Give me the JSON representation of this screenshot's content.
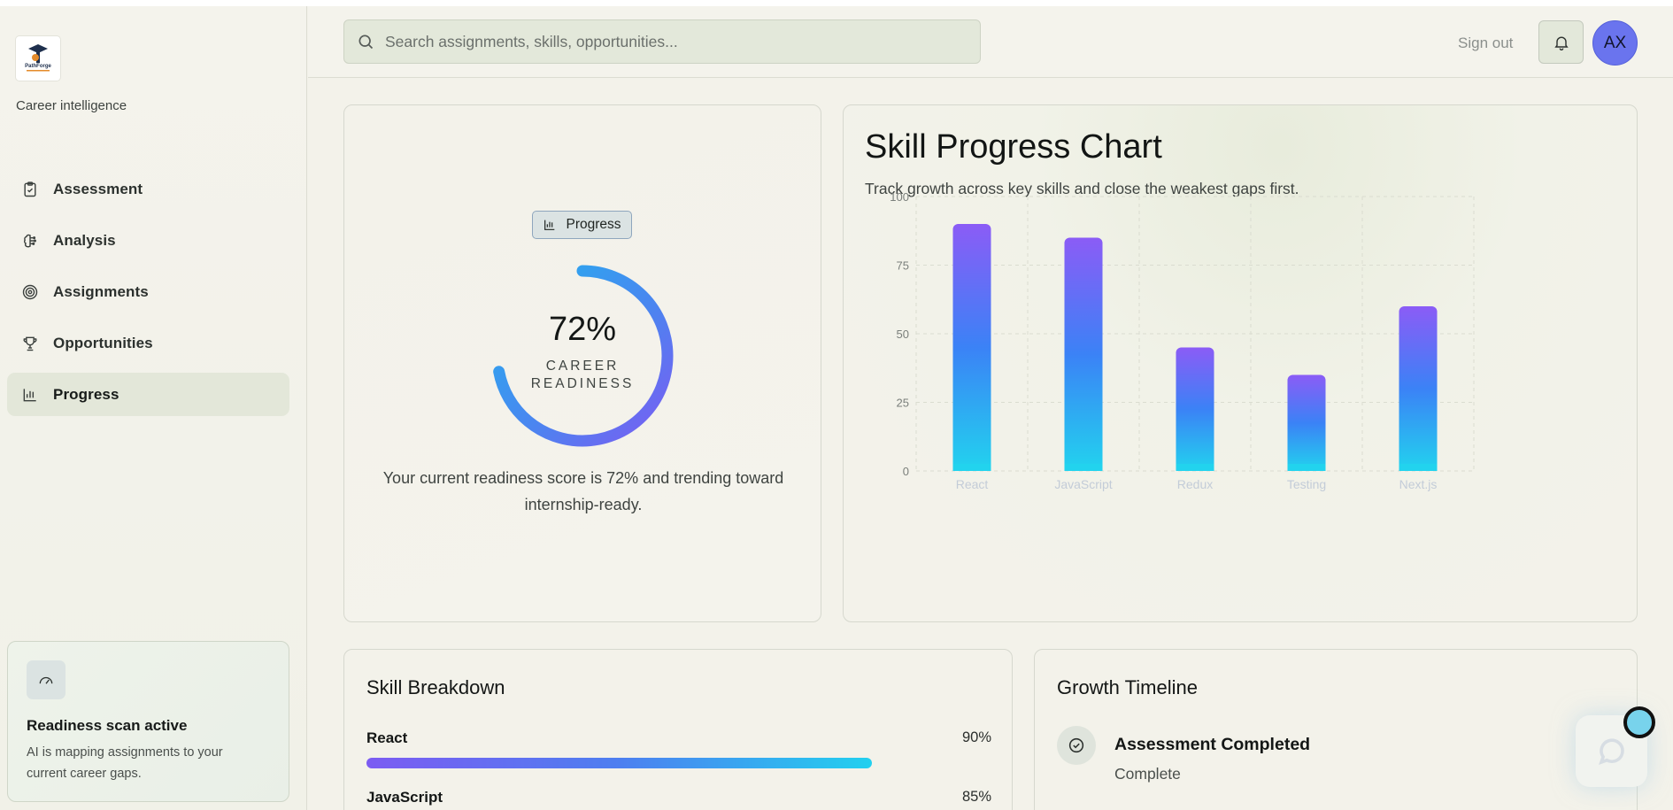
{
  "sidebar": {
    "logo_text": "PathForge",
    "tagline": "Career intelligence",
    "items": [
      {
        "label": "Assessment",
        "icon": "clipboard-check-icon",
        "active": false
      },
      {
        "label": "Analysis",
        "icon": "brain-icon",
        "active": false
      },
      {
        "label": "Assignments",
        "icon": "target-icon",
        "active": false
      },
      {
        "label": "Opportunities",
        "icon": "trophy-icon",
        "active": false
      },
      {
        "label": "Progress",
        "icon": "bar-chart-icon",
        "active": true
      }
    ],
    "scan": {
      "icon": "gauge-icon",
      "title": "Readiness scan active",
      "description": "AI is mapping assignments to your current career gaps."
    }
  },
  "header": {
    "search_placeholder": "Search assignments, skills, opportunities...",
    "search_value": "",
    "signout_label": "Sign out",
    "avatar_initials": "AX"
  },
  "readiness": {
    "badge_label": "Progress",
    "percent": 72,
    "percent_label": "72%",
    "label_line1": "CAREER",
    "label_line2": "READINESS",
    "description": "Your current readiness score is 72% and trending toward internship-ready."
  },
  "chart": {
    "title": "Skill Progress Chart",
    "subtitle": "Track growth across key skills and close the weakest gaps first."
  },
  "chart_data": {
    "type": "bar",
    "categories": [
      "React",
      "JavaScript",
      "Redux",
      "Testing",
      "Next.js"
    ],
    "values": [
      90,
      85,
      45,
      35,
      60
    ],
    "title": "Skill Progress Chart",
    "xlabel": "",
    "ylabel": "",
    "ylim": [
      0,
      100
    ],
    "yticks": [
      0,
      25,
      50,
      75,
      100
    ],
    "grid": true,
    "colors": {
      "top": "#8b5cf6",
      "mid": "#3b82f6",
      "bottom": "#22d3ee"
    }
  },
  "skills": {
    "title": "Skill Breakdown",
    "items": [
      {
        "name": "React",
        "value": 90,
        "label": "90%"
      },
      {
        "name": "JavaScript",
        "value": 85,
        "label": "85%"
      }
    ]
  },
  "timeline": {
    "title": "Growth Timeline",
    "items": [
      {
        "title": "Assessment Completed",
        "status": "Complete",
        "icon": "check-circle-icon"
      }
    ]
  },
  "chat": {
    "icon": "chat-bubble-icon"
  }
}
